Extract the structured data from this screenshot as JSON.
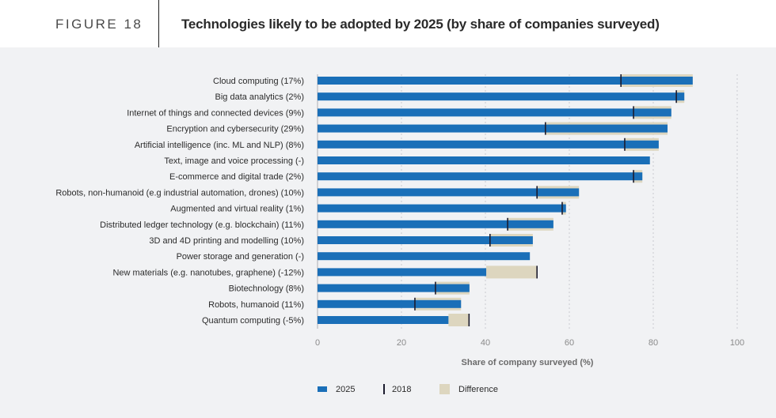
{
  "header": {
    "figure_label": "FIGURE 18",
    "title": "Technologies likely to be adopted by 2025 (by share of companies surveyed)"
  },
  "colors": {
    "bar_2025": "#1a6fb8",
    "mark_2018": "#1c1c2e",
    "difference": "#ddd6bf",
    "grid": "#c9cbd0",
    "panel_bg": "#f1f2f4"
  },
  "chart_data": {
    "type": "bar",
    "orientation": "horizontal",
    "title": "Technologies likely to be adopted by 2025 (by share of companies surveyed)",
    "xlabel": "Share of company surveyed (%)",
    "ylabel": "",
    "xlim": [
      0,
      100
    ],
    "xticks": [
      0,
      20,
      40,
      60,
      80,
      100
    ],
    "grid": true,
    "legend_position": "bottom",
    "legend": [
      "2025",
      "2018",
      "Difference"
    ],
    "categories": [
      "Cloud computing (17%)",
      "Big data analytics (2%)",
      "Internet of things and connected devices (9%)",
      "Encryption and cybersecurity (29%)",
      "Artificial intelligence (inc. ML and NLP) (8%)",
      "Text, image and voice processing (-)",
      "E-commerce and digital trade (2%)",
      "Robots, non-humanoid (e.g industrial automation, drones) (10%)",
      "Augmented and virtual reality (1%)",
      "Distributed ledger technology (e.g. blockchain) (11%)",
      "3D and 4D printing and modelling (10%)",
      "Power storage and generation (-)",
      "New materials (e.g. nanotubes, graphene) (-12%)",
      "Biotechnology (8%)",
      "Robots, humanoid (11%)",
      "Quantum computing (-5%)"
    ],
    "series": [
      {
        "name": "2025",
        "values": [
          89.4,
          87.4,
          84.3,
          83.4,
          81.3,
          79.2,
          77.4,
          62.3,
          59.2,
          56.2,
          51.3,
          50.6,
          40.2,
          36.2,
          34.2,
          31.2
        ]
      },
      {
        "name": "2018",
        "values": [
          72.3,
          85.5,
          75.3,
          54.3,
          73.2,
          null,
          75.3,
          52.3,
          58.3,
          45.3,
          41.1,
          null,
          52.3,
          28.1,
          23.2,
          36.1
        ]
      }
    ]
  }
}
